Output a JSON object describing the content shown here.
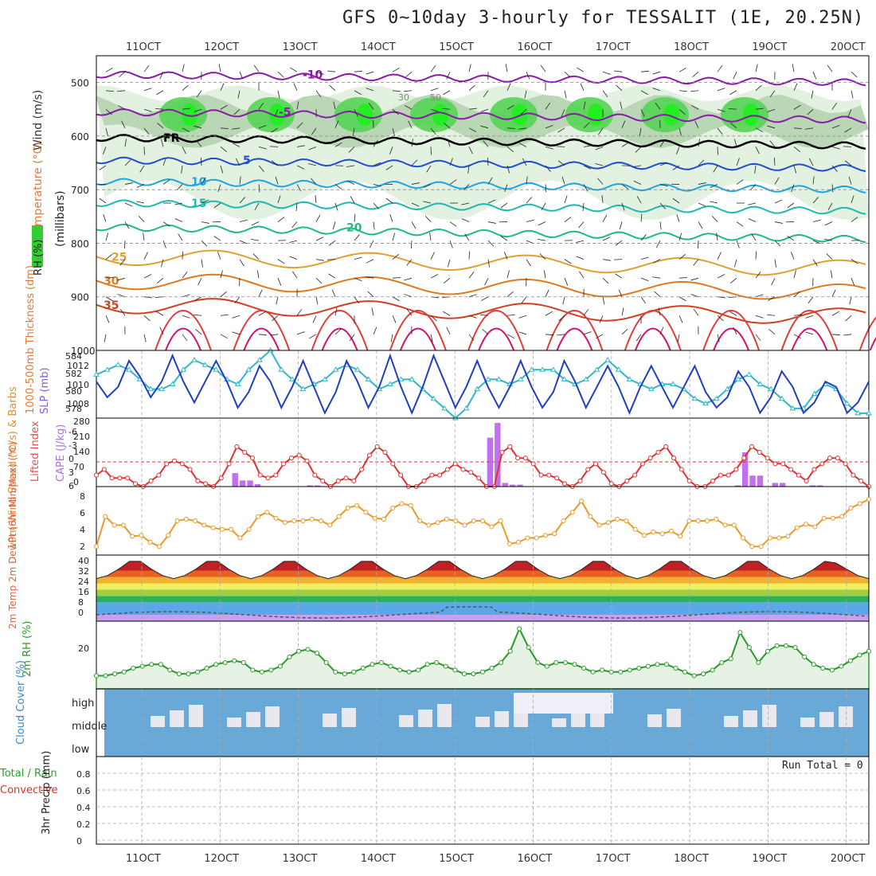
{
  "title": "GFS 0~10day 3-hourly for TESSALIT (1E, 20.25N)",
  "date_ticks": [
    "11OCT",
    "12OCT",
    "13OCT",
    "14OCT",
    "15OCT",
    "16OCT",
    "17OCT",
    "18OCT",
    "19OCT",
    "20OCT"
  ],
  "colors": {
    "temp_contour_cool": "#1e90ff",
    "temp_contour_warm": "#e87a1a",
    "freezing": "#000000",
    "humidity_green": "#33cc33",
    "slp": "#1f3fbf",
    "thickness": "#33b5c9",
    "lifted_index": "#e03030",
    "cape": "#c070f0",
    "wind": "#e89a2a",
    "rh": "#2a9a2a",
    "cloud": "#6aa8d8"
  },
  "panels": {
    "upper": {
      "ylabel_wind": "Wind (m/s)",
      "ylabel_temp": "Temperature (°C)",
      "ylabel_rh": "RH (%)",
      "ylabel_mb": "(millibars)",
      "yticks": [
        "500",
        "600",
        "700",
        "800",
        "900",
        "1000"
      ],
      "temp_labels": [
        "-10",
        "-5",
        "FR",
        "5",
        "10",
        "15",
        "20",
        "25",
        "30",
        "35"
      ],
      "rh_labels": [
        "30",
        "50"
      ]
    },
    "slp": {
      "ylabel_left": "1000-500mb Thickness (dm)",
      "ylabel_right": "SLP (mb)",
      "left_ticks": [
        "584",
        "582",
        "580",
        "578"
      ],
      "right_ticks": [
        "1012",
        "1010",
        "1008"
      ]
    },
    "cape": {
      "ylabel_left": "Lifted Index",
      "ylabel_right": "CAPE (J/kg)",
      "left_ticks": [
        "-6",
        "-3",
        "0",
        "3",
        "6"
      ],
      "right_ticks": [
        "280",
        "210",
        "140",
        "70",
        "0"
      ]
    },
    "wind10": {
      "ylabel": "10m Wind Speed (m/s) & Barbs",
      "ticks": [
        "8",
        "6",
        "4",
        "2"
      ]
    },
    "temp2m": {
      "ylabel": "2m Temp 2m DewPt (6hr Min/Max) (°C)",
      "ticks": [
        "40",
        "32",
        "24",
        "16",
        "8",
        "0"
      ]
    },
    "rh2m": {
      "ylabel": "2m RH (%)",
      "ticks": [
        "20"
      ]
    },
    "cloud": {
      "ylabel": "Cloud Cover (%)",
      "levels": [
        "high",
        "middle",
        "low"
      ]
    },
    "precip": {
      "ylabel_a": "Total / Rain",
      "ylabel_b": "Convective",
      "ylabel_c": "3hr Precip (mm)",
      "ticks": [
        "0.8",
        "0.6",
        "0.4",
        "0.2",
        "0"
      ],
      "run_total": "Run Total = 0"
    }
  },
  "chart_data": [
    {
      "type": "line",
      "name": "SLP",
      "ylabel": "SLP (mb)",
      "ylim": [
        1007,
        1013.5
      ],
      "values": [
        1010.5,
        1009,
        1010,
        1012.5,
        1011,
        1009,
        1010.5,
        1013,
        1010.5,
        1008.5,
        1010.5,
        1012.5,
        1010.5,
        1008,
        1009.5,
        1012,
        1010.5,
        1008,
        1010,
        1012.5,
        1010,
        1007.5,
        1009.5,
        1012.5,
        1010.5,
        1008,
        1010,
        1013,
        1010,
        1007.5,
        1010,
        1013,
        1010.5,
        1008,
        1010,
        1012.5,
        1010,
        1008,
        1010,
        1012.5,
        1010,
        1008,
        1009.5,
        1012.5,
        1010.5,
        1008,
        1010,
        1012,
        1010,
        1007.5,
        1010,
        1012,
        1010,
        1008,
        1010,
        1012,
        1009.5,
        1008,
        1009,
        1011.5,
        1010,
        1007.5,
        1009,
        1011.5,
        1010,
        1007.5,
        1008.5,
        1010.5,
        1010,
        1007.5,
        1008.5,
        1010.5
      ]
    },
    {
      "type": "line",
      "name": "1000-500mb Thickness",
      "ylabel": "Thickness (dm)",
      "ylim": [
        577,
        584
      ],
      "values": [
        581.5,
        582,
        582.5,
        582,
        581,
        580,
        580,
        580.5,
        582,
        583,
        582.5,
        582,
        581,
        580.5,
        582,
        583,
        584,
        582,
        581,
        580,
        580.5,
        581,
        582,
        582.5,
        582,
        581,
        580,
        580.5,
        581,
        581,
        580,
        579,
        578,
        577,
        578,
        580,
        581,
        581,
        580.5,
        581,
        582,
        582,
        582,
        581,
        580.5,
        581,
        582,
        583,
        582,
        581,
        580.5,
        580,
        580.5,
        580.5,
        580,
        579,
        578.5,
        579,
        580,
        581,
        581.5,
        580.5,
        580,
        579,
        578,
        578,
        579.5,
        580.5,
        580,
        578.5,
        577.5,
        577.5
      ]
    },
    {
      "type": "bar",
      "name": "CAPE",
      "ylabel": "CAPE (J/kg)",
      "ylim": [
        0,
        280
      ],
      "values": [
        0,
        0,
        0,
        0,
        0,
        0,
        0,
        0,
        0,
        0,
        0,
        0,
        0,
        0,
        0,
        0,
        0,
        0,
        55,
        25,
        25,
        10,
        0,
        0,
        0,
        0,
        0,
        0,
        5,
        5,
        0,
        0,
        0,
        0,
        0,
        0,
        0,
        0,
        0,
        0,
        0,
        0,
        0,
        0,
        0,
        0,
        0,
        0,
        0,
        0,
        0,
        0,
        200,
        260,
        15,
        8,
        8,
        0,
        0,
        0,
        0,
        0,
        0,
        0,
        0,
        0,
        0,
        0,
        0,
        0,
        0,
        0,
        0,
        0,
        0,
        0,
        0,
        0,
        0,
        0,
        0,
        0,
        0,
        0,
        0,
        5,
        140,
        45,
        45,
        0,
        15,
        15,
        0,
        0,
        0,
        5,
        5,
        0,
        0,
        0,
        0,
        0,
        0
      ]
    },
    {
      "type": "line",
      "name": "Lifted Index",
      "ylabel": "Lifted Index",
      "ylim": [
        6,
        -6
      ],
      "values": [
        4,
        3,
        4.5,
        4.5,
        4.5,
        5.5,
        6,
        5,
        4,
        2,
        1.5,
        2,
        3,
        5,
        5.5,
        6,
        4.5,
        2,
        -1,
        0,
        1,
        4,
        4.5,
        4,
        2,
        1,
        0.5,
        1.5,
        4,
        5,
        6,
        5,
        4.5,
        5,
        3,
        0.5,
        -1,
        0,
        2,
        4,
        6,
        6,
        5,
        4,
        4,
        3,
        2,
        3,
        3.5,
        4.5,
        6,
        6,
        0,
        -1,
        1,
        1,
        2,
        4,
        4,
        4.5,
        5.5,
        6,
        5,
        3,
        2,
        3.5,
        5.5,
        6,
        5,
        4,
        2,
        1,
        0,
        -1,
        1,
        3,
        5,
        6,
        6,
        5,
        4,
        4,
        3,
        1,
        -1,
        0,
        1,
        2,
        2,
        3,
        4,
        5,
        3,
        2,
        1,
        1,
        2,
        4,
        5,
        6
      ]
    },
    {
      "type": "line",
      "name": "10m Wind Speed",
      "ylabel": "(m/s)",
      "ylim": [
        0,
        8
      ],
      "values": [
        1,
        4.5,
        3.5,
        3.5,
        2.2,
        2.3,
        1.5,
        1,
        2.3,
        4,
        4.2,
        4,
        3.5,
        3.2,
        3,
        3,
        2,
        3,
        4.5,
        5,
        4.3,
        3.8,
        4,
        4,
        4.2,
        4,
        3.5,
        4.5,
        5.5,
        5.8,
        5,
        4.3,
        4.2,
        5.5,
        6,
        5.8,
        4,
        3.5,
        3.8,
        4.2,
        4,
        3.5,
        4,
        4,
        3.3,
        4,
        1.3,
        1.5,
        2,
        2,
        2.3,
        2.5,
        4,
        5,
        6.3,
        4.5,
        3.5,
        3.8,
        4.2,
        4,
        3,
        2.3,
        2.7,
        2.5,
        2.8,
        2.2,
        4,
        4,
        4,
        4.2,
        3.5,
        3.5,
        2,
        1,
        1,
        2,
        2,
        2.2,
        3.2,
        3.6,
        3.3,
        4.3,
        4.3,
        4.5,
        5.5,
        6,
        6.5
      ]
    },
    {
      "type": "area",
      "name": "2m Temp",
      "ylabel": "(°C)",
      "ylim": [
        0,
        42
      ],
      "values": [
        27,
        29,
        33,
        38,
        38,
        33,
        29,
        27,
        29,
        33,
        38,
        38,
        33,
        29,
        27,
        29,
        33,
        38,
        38,
        33,
        29,
        27,
        29,
        33,
        38,
        38,
        33,
        29,
        27,
        29,
        33,
        38,
        38,
        33,
        29,
        27,
        29,
        33,
        38,
        38,
        33,
        29,
        27,
        29,
        33,
        38,
        38,
        33,
        29,
        27,
        29,
        33,
        38,
        38,
        33,
        29,
        27,
        29,
        33,
        38,
        38,
        33,
        29,
        27,
        29,
        33,
        38,
        37,
        33,
        29,
        27
      ]
    },
    {
      "type": "area",
      "name": "2m RH",
      "ylabel": "(%)",
      "ylim": [
        0,
        36
      ],
      "values": [
        7,
        7,
        8,
        9,
        11,
        12,
        13,
        13,
        10,
        8,
        8,
        9,
        11,
        13,
        14,
        15,
        14,
        10,
        9,
        10,
        12,
        17,
        20,
        21,
        19,
        14,
        9,
        8,
        9,
        11,
        13,
        14,
        12,
        10,
        9,
        10,
        13,
        14,
        12,
        10,
        8,
        8,
        9,
        11,
        14,
        20,
        32,
        22,
        14,
        12,
        14,
        14,
        13,
        11,
        9,
        10,
        9,
        9,
        10,
        11,
        12,
        13,
        13,
        11,
        9,
        7,
        8,
        10,
        14,
        16,
        30,
        22,
        14,
        20,
        23,
        23,
        22,
        17,
        13,
        11,
        10,
        12,
        15,
        18,
        20
      ]
    },
    {
      "type": "area",
      "name": "3hr Precip",
      "ylabel": "3hr Precip (mm)",
      "ylim": [
        0,
        1
      ],
      "values": [
        0
      ]
    }
  ]
}
